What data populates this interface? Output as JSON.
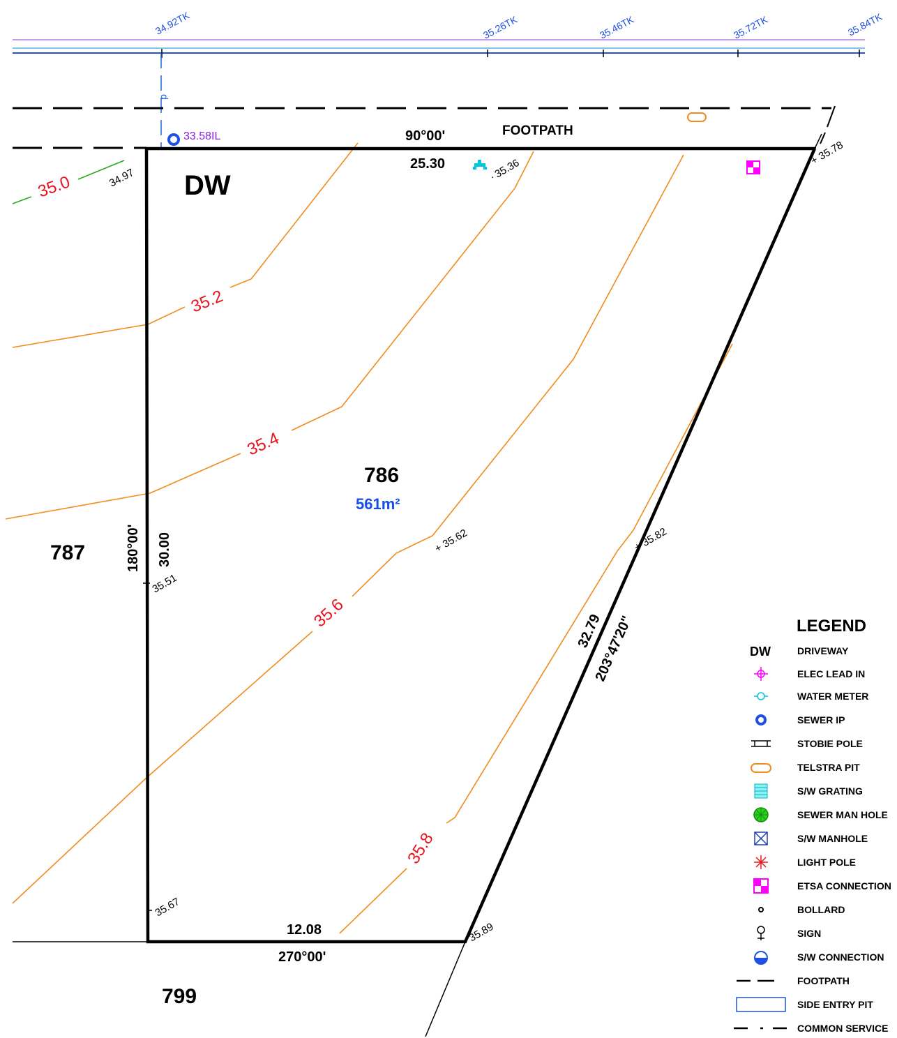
{
  "tk_levels": [
    "34.92TK",
    "35.26TK",
    "35.46TK",
    "35.72TK",
    "35.84TK"
  ],
  "sewer_ip_level": "33.58IL",
  "footpath_label": "FOOTPATH",
  "top_bearing": "90°00'",
  "top_distance": "25.30",
  "driveway_label": "DW",
  "lot_number": "786",
  "lot_area": "561m²",
  "left_bearing": "180°00'",
  "left_distance": "30.00",
  "bottom_distance": "12.08",
  "bottom_bearing": "270°00'",
  "diag_distance": "32.79",
  "diag_bearing": "203°47'20\"",
  "adjacent_lots": {
    "west": "787",
    "south": "799"
  },
  "spot_levels": [
    "34.97",
    "35.36",
    "35.78",
    "35.62",
    "35.82",
    "35.51",
    "35.67",
    "35.89"
  ],
  "contours": [
    "35.0",
    "35.2",
    "35.4",
    "35.6",
    "35.8"
  ],
  "legend": {
    "title": "LEGEND",
    "items": [
      {
        "icon": "dw-text",
        "label": "DRIVEWAY",
        "symbol": "DW"
      },
      {
        "icon": "elec-lead-in-icon",
        "label": "ELEC LEAD IN"
      },
      {
        "icon": "water-meter-icon",
        "label": "WATER METER"
      },
      {
        "icon": "sewer-ip-icon",
        "label": "SEWER IP"
      },
      {
        "icon": "stobie-pole-icon",
        "label": "STOBIE POLE"
      },
      {
        "icon": "telstra-pit-icon",
        "label": "TELSTRA PIT"
      },
      {
        "icon": "sw-grating-icon",
        "label": "S/W GRATING"
      },
      {
        "icon": "sewer-man-hole-icon",
        "label": "SEWER MAN HOLE"
      },
      {
        "icon": "sw-manhole-icon",
        "label": "S/W MANHOLE"
      },
      {
        "icon": "light-pole-icon",
        "label": "LIGHT POLE"
      },
      {
        "icon": "etsa-connection-icon",
        "label": "ETSA CONNECTION"
      },
      {
        "icon": "bollard-icon",
        "label": "BOLLARD"
      },
      {
        "icon": "sign-icon",
        "label": "SIGN"
      },
      {
        "icon": "sw-connection-icon",
        "label": "S/W CONNECTION"
      },
      {
        "icon": "footpath-line-icon",
        "label": "FOOTPATH"
      },
      {
        "icon": "side-entry-pit-icon",
        "label": "SIDE ENTRY PIT"
      },
      {
        "icon": "common-service-line-icon",
        "label": "COMMON SERVICE"
      }
    ]
  },
  "colors": {
    "boundary": "#000000",
    "contour_line": "#f08c1e",
    "contour_label": "#e8141e",
    "green_contour": "#2aa81e",
    "tk_text": "#1e50e6",
    "service_line": "#2850d2",
    "purple_line": "#b478e6",
    "lot_area": "#1450e6",
    "magenta": "#ff00ff",
    "cyan": "#00c8dc"
  }
}
